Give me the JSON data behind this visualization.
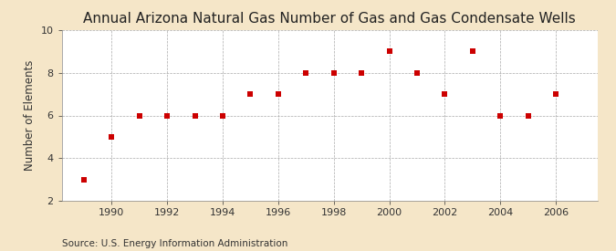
{
  "title": "Annual Arizona Natural Gas Number of Gas and Gas Condensate Wells",
  "ylabel": "Number of Elements",
  "source": "Source: U.S. Energy Information Administration",
  "figure_bg_color": "#f5e6c8",
  "plot_bg_color": "#ffffff",
  "years": [
    1989,
    1990,
    1991,
    1992,
    1993,
    1994,
    1995,
    1996,
    1997,
    1998,
    1999,
    2000,
    2001,
    2002,
    2003,
    2004,
    2005,
    2006
  ],
  "values": [
    3,
    5,
    6,
    6,
    6,
    6,
    7,
    7,
    8,
    8,
    8,
    9,
    8,
    7,
    9,
    6,
    6,
    7
  ],
  "marker_color": "#cc0000",
  "marker": "s",
  "marker_size": 4,
  "xlim": [
    1988.2,
    2007.5
  ],
  "ylim": [
    2,
    10
  ],
  "xticks": [
    1990,
    1992,
    1994,
    1996,
    1998,
    2000,
    2002,
    2004,
    2006
  ],
  "yticks": [
    2,
    4,
    6,
    8,
    10
  ],
  "grid_color": "#aaaaaa",
  "grid_linestyle": "--",
  "title_fontsize": 11,
  "label_fontsize": 8.5,
  "tick_fontsize": 8,
  "source_fontsize": 7.5
}
